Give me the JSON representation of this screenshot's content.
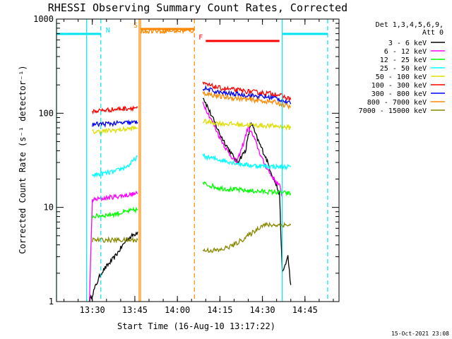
{
  "chart_data": {
    "type": "line",
    "title": "RHESSI Observing Summary Count Rates, Corrected",
    "xlabel": "Start Time (16-Aug-10 13:17:22)",
    "ylabel": "Corrected Count Rate (s⁻¹ detector⁻¹)",
    "y_scale": "log",
    "ylim": [
      1,
      1000
    ],
    "xlim": [
      "13:17:22",
      "14:57:00"
    ],
    "x_ticks": [
      "13:30",
      "13:45",
      "14:00",
      "14:15",
      "14:30",
      "14:45"
    ],
    "y_ticks": [
      "1",
      "10",
      "100",
      "1000"
    ],
    "legend": {
      "placement": "right",
      "header": [
        "Det 1,3,4,5,6,9,",
        "Att 0"
      ],
      "entries": [
        {
          "label": "3 - 6 keV",
          "color": "#000000"
        },
        {
          "label": "6 - 12 keV",
          "color": "#ff00ff"
        },
        {
          "label": "12 - 25 keV",
          "color": "#00ff00"
        },
        {
          "label": "25 - 50 keV",
          "color": "#00ffff"
        },
        {
          "label": "50 - 100 keV",
          "color": "#dddd00"
        },
        {
          "label": "100 - 300 keV",
          "color": "#ff0000"
        },
        {
          "label": "300 - 800 keV",
          "color": "#0000ff"
        },
        {
          "label": "800 - 7000 keV",
          "color": "#ff8800"
        },
        {
          "label": "7000 - 15000 keV",
          "color": "#888800"
        }
      ]
    },
    "flag_bars": [
      {
        "label": "N",
        "color": "#00e5ee",
        "segments": [
          [
            "13:17:22",
            "13:33:00"
          ],
          [
            "14:37:00",
            "14:53:00"
          ]
        ]
      },
      {
        "label": "S",
        "color": "#ff8800",
        "segments": [
          [
            "13:47:00",
            "14:06:00"
          ]
        ]
      },
      {
        "label": "F",
        "color": "#ff0000",
        "segments": [
          [
            "14:10:00",
            "14:36:00"
          ]
        ]
      }
    ],
    "markers": [
      {
        "time": "13:17:22",
        "color": "#00e5ee",
        "style": "solid"
      },
      {
        "time": "13:28:00",
        "color": "#00e5ee",
        "style": "solid"
      },
      {
        "time": "13:33:00",
        "color": "#00e5ee",
        "style": "dashed"
      },
      {
        "time": "13:46:30",
        "color": "#ff8800",
        "style": "solid"
      },
      {
        "time": "13:47:00",
        "color": "#ff8800",
        "style": "solid"
      },
      {
        "time": "14:06:00",
        "color": "#ff8800",
        "style": "dashed"
      },
      {
        "time": "14:37:00",
        "color": "#00e5ee",
        "style": "solid"
      },
      {
        "time": "14:53:00",
        "color": "#00e5ee",
        "style": "dashed"
      }
    ],
    "series": [
      {
        "name": "3 - 6 keV",
        "color": "#000000",
        "segments": [
          [
            [
              "13:29:00",
              1.0
            ],
            [
              "13:33:00",
              2.0
            ],
            [
              "13:38:00",
              3.0
            ],
            [
              "13:42:00",
              4.5
            ],
            [
              "13:46:00",
              5.5
            ]
          ],
          [
            [
              "14:09:00",
              150
            ],
            [
              "14:12:00",
              95
            ],
            [
              "14:15:00",
              60
            ],
            [
              "14:18:00",
              42
            ],
            [
              "14:21:00",
              30
            ],
            [
              "14:24:00",
              40
            ],
            [
              "14:26:00",
              80
            ],
            [
              "14:28:00",
              55
            ],
            [
              "14:31:00",
              35
            ],
            [
              "14:34:00",
              20
            ],
            [
              "14:36:00",
              14
            ],
            [
              "14:37:00",
              2
            ],
            [
              "14:39:00",
              3
            ],
            [
              "14:40:00",
              1.5
            ]
          ]
        ]
      },
      {
        "name": "6 - 12 keV",
        "color": "#ff00ff",
        "segments": [
          [
            [
              "13:29:00",
              1.0
            ],
            [
              "13:30:00",
              12
            ],
            [
              "13:38:00",
              13
            ],
            [
              "13:46:00",
              14
            ]
          ],
          [
            [
              "14:09:00",
              130
            ],
            [
              "14:12:00",
              85
            ],
            [
              "14:15:00",
              55
            ],
            [
              "14:18:00",
              38
            ],
            [
              "14:21:00",
              30
            ],
            [
              "14:23:00",
              45
            ],
            [
              "14:25:00",
              72
            ],
            [
              "14:27:00",
              55
            ],
            [
              "14:30:00",
              32
            ],
            [
              "14:33:00",
              22
            ],
            [
              "14:36:00",
              17
            ],
            [
              "14:37:00",
              13
            ]
          ]
        ]
      },
      {
        "name": "12 - 25 keV",
        "color": "#00ff00",
        "segments": [
          [
            [
              "13:30:00",
              8
            ],
            [
              "13:38:00",
              8.5
            ],
            [
              "13:46:00",
              9.5
            ]
          ],
          [
            [
              "14:09:00",
              18
            ],
            [
              "14:15:00",
              16
            ],
            [
              "14:25:00",
              15
            ],
            [
              "14:35:00",
              14.5
            ],
            [
              "14:40:00",
              14
            ]
          ]
        ]
      },
      {
        "name": "25 - 50 keV",
        "color": "#00ffff",
        "segments": [
          [
            [
              "13:30:00",
              22
            ],
            [
              "13:38:00",
              24
            ],
            [
              "13:43:00",
              28
            ],
            [
              "13:46:00",
              35
            ]
          ],
          [
            [
              "14:09:00",
              35
            ],
            [
              "14:15:00",
              32
            ],
            [
              "14:25:00",
              28
            ],
            [
              "14:35:00",
              27
            ],
            [
              "14:40:00",
              27
            ]
          ]
        ]
      },
      {
        "name": "50 - 100 keV",
        "color": "#dddd00",
        "segments": [
          [
            [
              "13:30:00",
              63
            ],
            [
              "13:38:00",
              66
            ],
            [
              "13:46:00",
              70
            ]
          ],
          [
            [
              "14:09:00",
              82
            ],
            [
              "14:15:00",
              78
            ],
            [
              "14:25:00",
              75
            ],
            [
              "14:35:00",
              73
            ],
            [
              "14:40:00",
              70
            ]
          ]
        ]
      },
      {
        "name": "100 - 300 keV",
        "color": "#ff0000",
        "segments": [
          [
            [
              "13:30:00",
              105
            ],
            [
              "13:38:00",
              110
            ],
            [
              "13:46:00",
              115
            ]
          ],
          [
            [
              "14:09:00",
              205
            ],
            [
              "14:15:00",
              185
            ],
            [
              "14:25:00",
              170
            ],
            [
              "14:35:00",
              160
            ],
            [
              "14:40:00",
              140
            ]
          ]
        ]
      },
      {
        "name": "300 - 800 keV",
        "color": "#0000ff",
        "segments": [
          [
            [
              "13:30:00",
              76
            ],
            [
              "13:38:00",
              78
            ],
            [
              "13:46:00",
              80
            ]
          ],
          [
            [
              "14:09:00",
              185
            ],
            [
              "14:15:00",
              165
            ],
            [
              "14:25:00",
              155
            ],
            [
              "14:35:00",
              145
            ],
            [
              "14:40:00",
              125
            ]
          ]
        ]
      },
      {
        "name": "800 - 7000 keV",
        "color": "#ff8800",
        "segments": [
          [
            [
              "13:47:00",
              750
            ],
            [
              "14:06:00",
              750
            ]
          ],
          [
            [
              "14:09:00",
              165
            ],
            [
              "14:15:00",
              150
            ],
            [
              "14:25:00",
              140
            ],
            [
              "14:35:00",
              130
            ],
            [
              "14:40:00",
              115
            ]
          ]
        ]
      },
      {
        "name": "7000 - 15000 keV",
        "color": "#888800",
        "segments": [
          [
            [
              "13:30:00",
              4.5
            ],
            [
              "13:38:00",
              4.5
            ],
            [
              "13:46:00",
              4.5
            ]
          ],
          [
            [
              "14:09:00",
              3.5
            ],
            [
              "14:15:00",
              3.5
            ],
            [
              "14:20:00",
              4.0
            ],
            [
              "14:25:00",
              5.0
            ],
            [
              "14:30:00",
              6.5
            ],
            [
              "14:35:00",
              6.5
            ],
            [
              "14:40:00",
              6.5
            ]
          ]
        ]
      }
    ]
  },
  "footer": {
    "date_stamp": "15-Oct-2021 23:08"
  }
}
